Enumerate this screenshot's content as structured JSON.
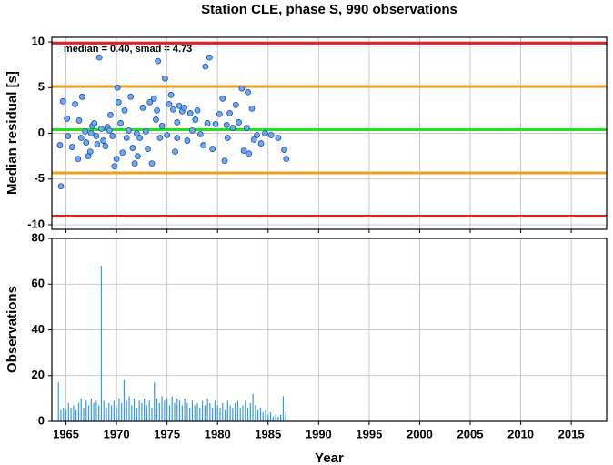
{
  "chart_data": [
    {
      "type": "scatter",
      "title": "Station CLE, phase S, 990 observations",
      "ylabel": "Median residual [s]",
      "annotation": "median = 0.40, smad = 4.73",
      "xlim": [
        1963.6,
        2018.5
      ],
      "xticks": [
        1965,
        1970,
        1975,
        1980,
        1985,
        1990,
        1995,
        2000,
        2005,
        2010,
        2015
      ],
      "ylim": [
        -10.5,
        10.5
      ],
      "yticks": [
        10,
        5,
        0,
        -5,
        -10
      ],
      "grid": true,
      "color": "#6fa8f0",
      "reference_lines": [
        {
          "value": 9.86,
          "color": "#dd2020"
        },
        {
          "value": 5.13,
          "color": "#f0a020"
        },
        {
          "value": 0.4,
          "color": "#22e022"
        },
        {
          "value": -4.33,
          "color": "#f0a020"
        },
        {
          "value": -9.06,
          "color": "#dd2020"
        }
      ],
      "x": [
        1964.4,
        1964.5,
        1964.7,
        1965.1,
        1965.2,
        1965.6,
        1965.9,
        1966.2,
        1966.3,
        1966.5,
        1966.6,
        1966.9,
        1967.0,
        1967.2,
        1967.4,
        1967.6,
        1967.8,
        1968.0,
        1968.1,
        1968.3,
        1968.5,
        1968.7,
        1968.9,
        1969.1,
        1969.4,
        1969.6,
        1969.8,
        1970.0,
        1970.1,
        1970.2,
        1970.4,
        1970.6,
        1970.8,
        1971.0,
        1971.2,
        1971.4,
        1971.6,
        1971.8,
        1972.1,
        1972.3,
        1972.6,
        1972.9,
        1973.1,
        1973.3,
        1973.5,
        1973.7,
        1973.9,
        1974.1,
        1974.3,
        1974.5,
        1974.8,
        1975.0,
        1975.2,
        1975.4,
        1975.6,
        1975.8,
        1976.0,
        1976.2,
        1976.5,
        1976.7,
        1977.0,
        1977.3,
        1977.5,
        1977.8,
        1978.0,
        1978.3,
        1978.6,
        1978.8,
        1979.0,
        1979.2,
        1979.5,
        1979.8,
        1980.2,
        1980.5,
        1980.7,
        1980.9,
        1981.2,
        1981.5,
        1981.8,
        1982.1,
        1982.4,
        1982.6,
        1982.9,
        1983.1,
        1983.4,
        1983.6,
        1983.9,
        1984.3,
        1984.7,
        1985.3,
        1986.0,
        1986.6,
        1986.8,
        1976.0,
        1969.3,
        1972.0,
        1974.0,
        1981.0,
        1983.0,
        1967.5
      ],
      "values": [
        -1.3,
        -5.8,
        3.5,
        1.6,
        -0.3,
        -1.5,
        3.2,
        -2.8,
        1.4,
        -0.5,
        4.0,
        0.2,
        -1.0,
        -2.5,
        -2.0,
        0.8,
        1.1,
        -0.3,
        -1.2,
        8.3,
        0.5,
        -0.8,
        -1.4,
        0.7,
        2.0,
        -0.3,
        -3.6,
        -2.8,
        5.0,
        3.4,
        1.1,
        -2.1,
        2.5,
        -0.5,
        0.3,
        4.0,
        -1.6,
        -3.3,
        -2.5,
        -0.5,
        2.8,
        0.2,
        -1.7,
        3.4,
        -3.3,
        3.8,
        1.5,
        7.9,
        -0.5,
        0.8,
        6.0,
        -0.2,
        3.2,
        4.2,
        2.6,
        -2.0,
        1.2,
        3.0,
        2.4,
        2.8,
        -0.8,
        2.2,
        0.3,
        1.5,
        2.5,
        -0.1,
        -1.3,
        7.3,
        1.1,
        8.3,
        -1.7,
        1.0,
        2.1,
        3.8,
        -3.0,
        0.9,
        2.2,
        0.6,
        3.1,
        1.2,
        4.9,
        -1.9,
        0.6,
        -2.2,
        2.7,
        -0.7,
        -0.2,
        -1.1,
        0.0,
        -0.2,
        -0.5,
        -1.8,
        -2.8,
        -0.5,
        0.3,
        0.0,
        2.5,
        -0.5,
        4.5,
        0.0
      ]
    },
    {
      "type": "bar",
      "ylabel": "Observations",
      "xlabel": "Year",
      "xlim": [
        1963.6,
        2018.5
      ],
      "xticks": [
        1965,
        1970,
        1975,
        1980,
        1985,
        1990,
        1995,
        2000,
        2005,
        2010,
        2015
      ],
      "ylim": [
        0,
        80
      ],
      "yticks": [
        0,
        20,
        40,
        60,
        80
      ],
      "grid": true,
      "color": "#3399ee",
      "x": [
        1964.25,
        1964.5,
        1964.75,
        1965,
        1965.25,
        1965.5,
        1965.75,
        1966,
        1966.25,
        1966.5,
        1966.75,
        1967,
        1967.25,
        1967.5,
        1967.75,
        1968,
        1968.25,
        1968.5,
        1968.75,
        1969,
        1969.25,
        1969.5,
        1969.75,
        1970,
        1970.25,
        1970.5,
        1970.75,
        1971,
        1971.25,
        1971.5,
        1971.75,
        1972,
        1972.25,
        1972.5,
        1972.75,
        1973,
        1973.25,
        1973.5,
        1973.75,
        1974,
        1974.25,
        1974.5,
        1974.75,
        1975,
        1975.25,
        1975.5,
        1975.75,
        1976,
        1976.25,
        1976.5,
        1976.75,
        1977,
        1977.25,
        1977.5,
        1977.75,
        1978,
        1978.25,
        1978.5,
        1978.75,
        1979,
        1979.25,
        1979.5,
        1979.75,
        1980,
        1980.25,
        1980.5,
        1980.75,
        1981,
        1981.25,
        1981.5,
        1981.75,
        1982,
        1982.25,
        1982.5,
        1982.75,
        1983,
        1983.25,
        1983.5,
        1983.75,
        1984,
        1984.25,
        1984.5,
        1984.75,
        1985,
        1985.25,
        1985.5,
        1985.75,
        1986,
        1986.25,
        1986.5,
        1986.75
      ],
      "values": [
        17,
        5,
        6,
        5,
        8,
        6,
        7,
        5,
        8,
        10,
        6,
        9,
        7,
        10,
        8,
        9,
        7,
        68,
        9,
        6,
        8,
        7,
        9,
        6,
        10,
        8,
        18,
        9,
        11,
        7,
        10,
        6,
        9,
        8,
        10,
        7,
        9,
        6,
        17,
        10,
        8,
        11,
        9,
        10,
        7,
        11,
        8,
        10,
        9,
        7,
        10,
        8,
        6,
        9,
        7,
        8,
        6,
        9,
        7,
        10,
        8,
        6,
        9,
        7,
        6,
        8,
        5,
        9,
        7,
        6,
        8,
        9,
        6,
        7,
        9,
        6,
        8,
        12,
        7,
        5,
        6,
        4,
        5,
        3,
        4,
        2,
        3,
        2,
        3,
        11,
        4
      ]
    }
  ]
}
